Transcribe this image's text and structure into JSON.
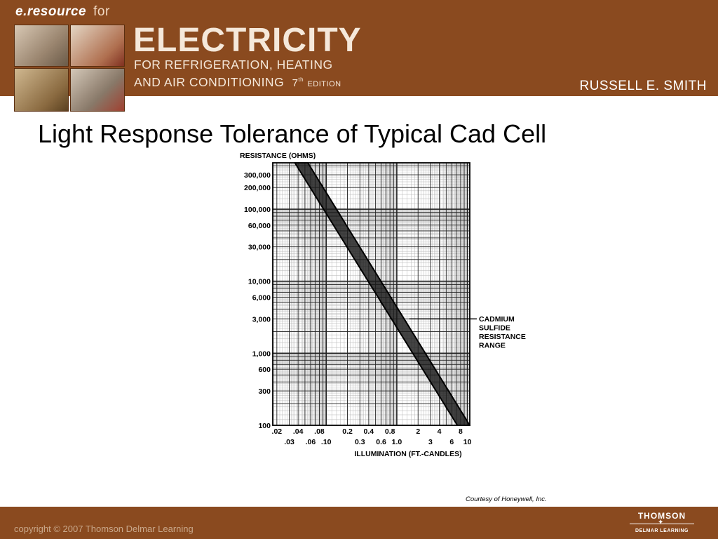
{
  "header": {
    "brand": "e.resource",
    "brand_for": "for",
    "title_main": "ELECTRICITY",
    "title_sub_line1": "FOR REFRIGERATION, HEATING",
    "title_sub_line2": "AND AIR CONDITIONING",
    "edition_num": "7",
    "edition_sup": "th",
    "edition_word": "EDITION",
    "author": "RUSSELL E. SMITH"
  },
  "slide": {
    "title": "Light Response Tolerance of Typical Cad Cell",
    "courtesy": "Courtesy of Honeywell, Inc."
  },
  "chart_data": {
    "type": "area",
    "ylabel": "RESISTANCE (OHMS)",
    "xlabel": "ILLUMINATION (FT.-CANDLES)",
    "x_scale": "log",
    "y_scale": "log",
    "xlim": [
      0.0175,
      10.8
    ],
    "ylim": [
      100,
      440000
    ],
    "grid": true,
    "y_ticks": [
      {
        "value": 300000,
        "label": "300,000"
      },
      {
        "value": 200000,
        "label": "200,000"
      },
      {
        "value": 100000,
        "label": "100,000"
      },
      {
        "value": 60000,
        "label": "60,000"
      },
      {
        "value": 30000,
        "label": "30,000"
      },
      {
        "value": 10000,
        "label": "10,000"
      },
      {
        "value": 6000,
        "label": "6,000"
      },
      {
        "value": 3000,
        "label": "3,000"
      },
      {
        "value": 1000,
        "label": "1,000"
      },
      {
        "value": 600,
        "label": "600"
      },
      {
        "value": 300,
        "label": "300"
      },
      {
        "value": 100,
        "label": "100"
      }
    ],
    "x_ticks_upper": [
      {
        "value": 0.02,
        "label": ".02"
      },
      {
        "value": 0.04,
        "label": ".04"
      },
      {
        "value": 0.08,
        "label": ".08"
      },
      {
        "value": 0.2,
        "label": "0.2"
      },
      {
        "value": 0.4,
        "label": "0.4"
      },
      {
        "value": 0.8,
        "label": "0.8"
      },
      {
        "value": 2,
        "label": "2"
      },
      {
        "value": 4,
        "label": "4"
      },
      {
        "value": 8,
        "label": "8"
      }
    ],
    "x_ticks_lower": [
      {
        "value": 0.03,
        "label": ".03"
      },
      {
        "value": 0.06,
        "label": ".06"
      },
      {
        "value": 0.1,
        "label": ".10"
      },
      {
        "value": 0.3,
        "label": "0.3"
      },
      {
        "value": 0.6,
        "label": "0.6"
      },
      {
        "value": 1.0,
        "label": "1.0"
      },
      {
        "value": 3,
        "label": "3"
      },
      {
        "value": 6,
        "label": "6"
      },
      {
        "value": 10,
        "label": "10"
      }
    ],
    "band": {
      "name_lines": [
        "CADMIUM",
        "SULFIDE",
        "RESISTANCE",
        "RANGE"
      ],
      "upper_edge": [
        [
          0.055,
          440000
        ],
        [
          10.8,
          100
        ]
      ],
      "lower_edge": [
        [
          0.036,
          440000
        ],
        [
          7.2,
          100
        ]
      ],
      "annotation_point": [
        1.5,
        3000
      ],
      "color": "#1a1a1a"
    }
  },
  "footer": {
    "copyright": "copyright © 2007 Thomson Delmar Learning",
    "publisher": "THOMSON",
    "publisher_sub": "DELMAR LEARNING"
  },
  "colors": {
    "header_bg": "#8a4a1f",
    "footer_bg": "#8a4a1f"
  }
}
